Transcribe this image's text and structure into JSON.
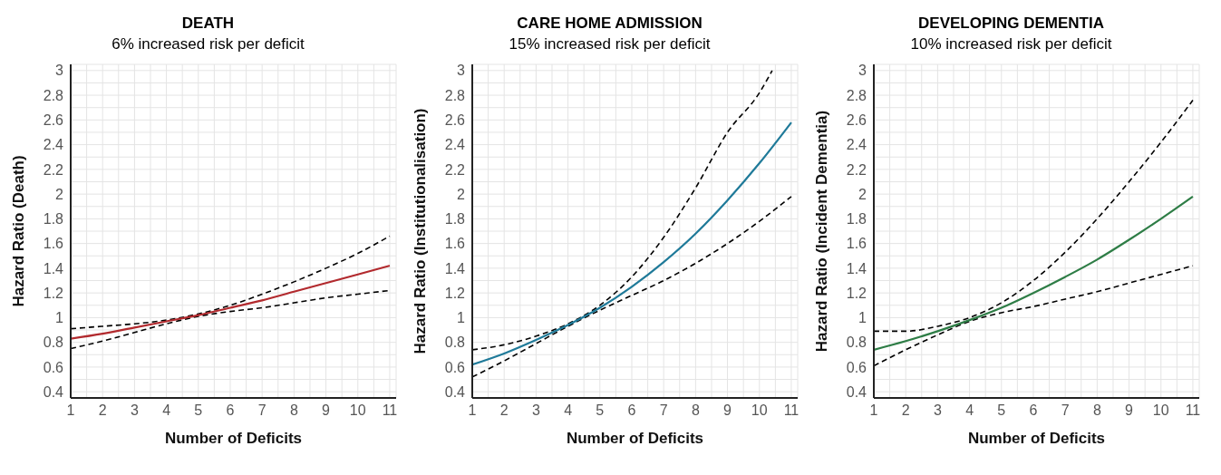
{
  "chart_data": [
    {
      "type": "line",
      "title": "DEATH",
      "subtitle": "6% increased risk per deficit",
      "xlabel": "Number of Deficits",
      "ylabel": "Hazard Ratio (Death)",
      "xlim": [
        1,
        11.2
      ],
      "ylim": [
        0.35,
        3.05
      ],
      "xticks": [
        1,
        {
          "value": 1.5,
          "label": null
        },
        2,
        {
          "value": 2.5,
          "label": null
        },
        3,
        {
          "value": 3.5,
          "label": null
        },
        4,
        {
          "value": 4.5,
          "label": null
        },
        5,
        {
          "value": 5.5,
          "label": null
        },
        6,
        {
          "value": 6.5,
          "label": null
        },
        7,
        {
          "value": 7.5,
          "label": null
        },
        8,
        {
          "value": 8.5,
          "label": null
        },
        9,
        {
          "value": 9.5,
          "label": null
        },
        10,
        {
          "value": 10.5,
          "label": null
        },
        11
      ],
      "yticks": [
        0.4,
        {
          "value": 0.5,
          "label": null
        },
        0.6,
        {
          "value": 0.7,
          "label": null
        },
        0.8,
        {
          "value": 0.9,
          "label": null
        },
        1,
        {
          "value": 1.1,
          "label": null
        },
        1.2,
        {
          "value": 1.3,
          "label": null
        },
        1.4,
        {
          "value": 1.5,
          "label": null
        },
        1.6,
        {
          "value": 1.7,
          "label": null
        },
        1.8,
        {
          "value": 1.9,
          "label": null
        },
        2,
        {
          "value": 2.1,
          "label": null
        },
        2.2,
        {
          "value": 2.3,
          "label": null
        },
        2.4,
        {
          "value": 2.5,
          "label": null
        },
        2.6,
        {
          "value": 2.7,
          "label": null
        },
        2.8,
        {
          "value": 2.9,
          "label": null
        },
        3
      ],
      "grid": true,
      "x": [
        1,
        2,
        3,
        4,
        5,
        6,
        7,
        8,
        9,
        10,
        11
      ],
      "series": [
        {
          "color": "#000000",
          "line_style": "dashed",
          "values": [
            0.91,
            0.93,
            0.95,
            0.98,
            1.03,
            1.1,
            1.19,
            1.29,
            1.4,
            1.52,
            1.66
          ]
        },
        {
          "color": "#000000",
          "line_style": "dashed",
          "values": [
            0.75,
            0.81,
            0.88,
            0.95,
            1.01,
            1.05,
            1.08,
            1.12,
            1.16,
            1.19,
            1.22
          ]
        },
        {
          "color": "#b22a2e",
          "values": [
            0.83,
            0.87,
            0.92,
            0.97,
            1.02,
            1.08,
            1.14,
            1.21,
            1.28,
            1.35,
            1.42
          ]
        }
      ]
    },
    {
      "type": "line",
      "title": "CARE HOME ADMISSION",
      "subtitle": "15% increased risk per deficit",
      "xlabel": "Number of Deficits",
      "ylabel": "Hazard Ratio (Institutionalisation)",
      "xlim": [
        1,
        11.2
      ],
      "ylim": [
        0.35,
        3.05
      ],
      "xticks": [
        1,
        {
          "value": 1.5,
          "label": null
        },
        2,
        {
          "value": 2.5,
          "label": null
        },
        3,
        {
          "value": 3.5,
          "label": null
        },
        4,
        {
          "value": 4.5,
          "label": null
        },
        5,
        {
          "value": 5.5,
          "label": null
        },
        6,
        {
          "value": 6.5,
          "label": null
        },
        7,
        {
          "value": 7.5,
          "label": null
        },
        8,
        {
          "value": 8.5,
          "label": null
        },
        9,
        {
          "value": 9.5,
          "label": null
        },
        10,
        {
          "value": 10.5,
          "label": null
        },
        11
      ],
      "yticks": [
        0.4,
        {
          "value": 0.5,
          "label": null
        },
        0.6,
        {
          "value": 0.7,
          "label": null
        },
        0.8,
        {
          "value": 0.9,
          "label": null
        },
        1,
        {
          "value": 1.1,
          "label": null
        },
        1.2,
        {
          "value": 1.3,
          "label": null
        },
        1.4,
        {
          "value": 1.5,
          "label": null
        },
        1.6,
        {
          "value": 1.7,
          "label": null
        },
        1.8,
        {
          "value": 1.9,
          "label": null
        },
        2,
        {
          "value": 2.1,
          "label": null
        },
        2.2,
        {
          "value": 2.3,
          "label": null
        },
        2.4,
        {
          "value": 2.5,
          "label": null
        },
        2.6,
        {
          "value": 2.7,
          "label": null
        },
        2.8,
        {
          "value": 2.9,
          "label": null
        },
        3
      ],
      "grid": true,
      "x": [
        1,
        2,
        3,
        4,
        5,
        6,
        7,
        8,
        9,
        10,
        11
      ],
      "series": [
        {
          "color": "#000000",
          "line_style": "dashed",
          "x": [
            1,
            2,
            3,
            4,
            5,
            6,
            7,
            8,
            9,
            10,
            10.4
          ],
          "values": [
            0.74,
            0.78,
            0.85,
            0.95,
            1.1,
            1.33,
            1.65,
            2.05,
            2.5,
            2.82,
            3.0
          ]
        },
        {
          "color": "#000000",
          "line_style": "dashed",
          "values": [
            0.52,
            0.65,
            0.79,
            0.93,
            1.06,
            1.18,
            1.3,
            1.44,
            1.6,
            1.78,
            1.98
          ]
        },
        {
          "color": "#1f7a99",
          "values": [
            0.62,
            0.71,
            0.82,
            0.94,
            1.08,
            1.25,
            1.45,
            1.68,
            1.95,
            2.25,
            2.58
          ]
        }
      ]
    },
    {
      "type": "line",
      "title": "DEVELOPING DEMENTIA",
      "subtitle": "10% increased risk per deficit",
      "xlabel": "Number of Deficits",
      "ylabel": "Hazard Ratio (Incident Dementia)",
      "xlim": [
        1,
        11.2
      ],
      "ylim": [
        0.35,
        3.05
      ],
      "xticks": [
        1,
        {
          "value": 1.5,
          "label": null
        },
        2,
        {
          "value": 2.5,
          "label": null
        },
        3,
        {
          "value": 3.5,
          "label": null
        },
        4,
        {
          "value": 4.5,
          "label": null
        },
        5,
        {
          "value": 5.5,
          "label": null
        },
        6,
        {
          "value": 6.5,
          "label": null
        },
        7,
        {
          "value": 7.5,
          "label": null
        },
        8,
        {
          "value": 8.5,
          "label": null
        },
        9,
        {
          "value": 9.5,
          "label": null
        },
        10,
        {
          "value": 10.5,
          "label": null
        },
        11
      ],
      "yticks": [
        0.4,
        {
          "value": 0.5,
          "label": null
        },
        0.6,
        {
          "value": 0.7,
          "label": null
        },
        0.8,
        {
          "value": 0.9,
          "label": null
        },
        1,
        {
          "value": 1.1,
          "label": null
        },
        1.2,
        {
          "value": 1.3,
          "label": null
        },
        1.4,
        {
          "value": 1.5,
          "label": null
        },
        1.6,
        {
          "value": 1.7,
          "label": null
        },
        1.8,
        {
          "value": 1.9,
          "label": null
        },
        2,
        {
          "value": 2.1,
          "label": null
        },
        2.2,
        {
          "value": 2.3,
          "label": null
        },
        2.4,
        {
          "value": 2.5,
          "label": null
        },
        2.6,
        {
          "value": 2.7,
          "label": null
        },
        2.8,
        {
          "value": 2.9,
          "label": null
        },
        3
      ],
      "grid": true,
      "x": [
        1,
        2,
        3,
        4,
        5,
        6,
        7,
        8,
        9,
        10,
        11
      ],
      "series": [
        {
          "color": "#000000",
          "line_style": "dashed",
          "values": [
            0.89,
            0.89,
            0.93,
            1.0,
            1.12,
            1.3,
            1.53,
            1.8,
            2.1,
            2.42,
            2.76
          ]
        },
        {
          "color": "#000000",
          "line_style": "dashed",
          "values": [
            0.61,
            0.74,
            0.86,
            0.97,
            1.04,
            1.09,
            1.15,
            1.21,
            1.28,
            1.35,
            1.42
          ]
        },
        {
          "color": "#2e7d46",
          "values": [
            0.74,
            0.81,
            0.89,
            0.98,
            1.08,
            1.2,
            1.33,
            1.47,
            1.63,
            1.8,
            1.98
          ]
        }
      ]
    }
  ]
}
